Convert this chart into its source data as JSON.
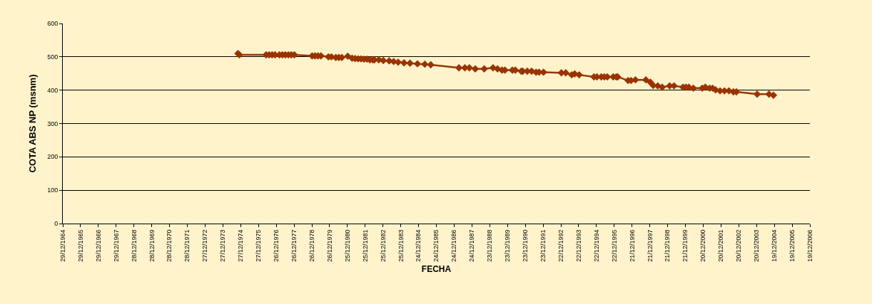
{
  "chart_data": {
    "type": "line",
    "xlabel": "FECHA",
    "ylabel": "COTA ABS NP (msnm)",
    "x": [
      "1974-11",
      "1974-12",
      "1976-06",
      "1976-08",
      "1976-10",
      "1976-12",
      "1977-03",
      "1977-05",
      "1977-07",
      "1977-09",
      "1977-11",
      "1978-01",
      "1979-01",
      "1979-03",
      "1979-05",
      "1979-07",
      "1979-12",
      "1980-02",
      "1980-05",
      "1980-07",
      "1980-09",
      "1981-01",
      "1981-04",
      "1981-06",
      "1981-08",
      "1981-10",
      "1981-12",
      "1982-02",
      "1982-04",
      "1982-06",
      "1982-07",
      "1982-10",
      "1983-01",
      "1983-05",
      "1983-08",
      "1983-11",
      "1984-03",
      "1984-07",
      "1984-12",
      "1985-05",
      "1985-09",
      "1987-04",
      "1987-08",
      "1987-11",
      "1988-03",
      "1988-09",
      "1989-03",
      "1989-06",
      "1989-09",
      "1989-11",
      "1990-04",
      "1990-06",
      "1990-10",
      "1990-11",
      "1991-02",
      "1991-05",
      "1991-08",
      "1991-10",
      "1992-01",
      "1993-01",
      "1993-04",
      "1993-08",
      "1993-10",
      "1994-01",
      "1994-11",
      "1995-01",
      "1995-04",
      "1995-06",
      "1995-08",
      "1995-12",
      "1996-02",
      "1996-03",
      "1996-10",
      "1996-12",
      "1997-03",
      "1997-10",
      "1998-01",
      "1998-03",
      "1998-06",
      "1998-09",
      "1999-02",
      "1999-05",
      "1999-11",
      "2000-01",
      "2000-03",
      "2000-06",
      "2000-12",
      "2001-02",
      "2001-05",
      "2001-07",
      "2001-09",
      "2001-12",
      "2002-03",
      "2002-06",
      "2002-09",
      "2002-11",
      "2004-01",
      "2004-09",
      "2004-12"
    ],
    "series": [
      {
        "color": "#993300",
        "values": [
          510,
          506,
          506,
          506,
          506,
          506,
          506,
          506,
          506,
          506,
          506,
          506,
          503,
          503,
          503,
          503,
          500,
          500,
          498,
          498,
          498,
          502,
          496,
          495,
          494,
          494,
          493,
          493,
          491,
          491,
          491,
          491,
          489,
          488,
          486,
          484,
          482,
          481,
          479,
          478,
          476,
          467,
          467,
          467,
          464,
          464,
          467,
          464,
          460,
          460,
          460,
          460,
          457,
          457,
          457,
          457,
          454,
          454,
          454,
          452,
          452,
          446,
          449,
          446,
          440,
          440,
          440,
          440,
          440,
          440,
          440,
          440,
          429,
          429,
          431,
          431,
          424,
          414,
          413,
          409,
          413,
          413,
          409,
          409,
          409,
          406,
          406,
          409,
          406,
          406,
          401,
          398,
          398,
          398,
          395,
          395,
          388,
          388,
          385
        ]
      }
    ],
    "xlim": [
      "1964-12-29",
      "2006-12-19"
    ],
    "xticks": [
      {
        "value": "1964-12-29",
        "label": "29/12/1964"
      },
      {
        "value": "1965-12-29",
        "label": "29/12/1965"
      },
      {
        "value": "1966-12-29",
        "label": "29/12/1966"
      },
      {
        "value": "1967-12-29",
        "label": "29/12/1967"
      },
      {
        "value": "1968-12-28",
        "label": "28/12/1968"
      },
      {
        "value": "1969-12-28",
        "label": "28/12/1969"
      },
      {
        "value": "1970-12-28",
        "label": "28/12/1970"
      },
      {
        "value": "1971-12-28",
        "label": "28/12/1971"
      },
      {
        "value": "1972-12-27",
        "label": "27/12/1972"
      },
      {
        "value": "1973-12-27",
        "label": "27/12/1973"
      },
      {
        "value": "1974-12-27",
        "label": "27/12/1974"
      },
      {
        "value": "1975-12-27",
        "label": "27/12/1975"
      },
      {
        "value": "1976-12-26",
        "label": "26/12/1976"
      },
      {
        "value": "1977-12-26",
        "label": "26/12/1977"
      },
      {
        "value": "1978-12-26",
        "label": "26/12/1978"
      },
      {
        "value": "1979-12-26",
        "label": "26/12/1979"
      },
      {
        "value": "1980-12-25",
        "label": "25/12/1980"
      },
      {
        "value": "1981-12-25",
        "label": "25/12/1981"
      },
      {
        "value": "1982-12-25",
        "label": "25/12/1982"
      },
      {
        "value": "1983-12-25",
        "label": "25/12/1983"
      },
      {
        "value": "1984-12-24",
        "label": "24/12/1984"
      },
      {
        "value": "1985-12-24",
        "label": "24/12/1985"
      },
      {
        "value": "1986-12-24",
        "label": "24/12/1986"
      },
      {
        "value": "1987-12-24",
        "label": "24/12/1987"
      },
      {
        "value": "1988-12-23",
        "label": "23/12/1988"
      },
      {
        "value": "1989-12-23",
        "label": "23/12/1989"
      },
      {
        "value": "1990-12-23",
        "label": "23/12/1990"
      },
      {
        "value": "1991-12-23",
        "label": "23/12/1991"
      },
      {
        "value": "1992-12-22",
        "label": "22/12/1992"
      },
      {
        "value": "1993-12-22",
        "label": "22/12/1993"
      },
      {
        "value": "1994-12-22",
        "label": "22/12/1994"
      },
      {
        "value": "1995-12-22",
        "label": "22/12/1995"
      },
      {
        "value": "1996-12-21",
        "label": "21/12/1996"
      },
      {
        "value": "1997-12-21",
        "label": "21/12/1997"
      },
      {
        "value": "1998-12-21",
        "label": "21/12/1998"
      },
      {
        "value": "1999-12-21",
        "label": "21/12/1999"
      },
      {
        "value": "2000-12-20",
        "label": "20/12/2000"
      },
      {
        "value": "2001-12-20",
        "label": "20/12/2001"
      },
      {
        "value": "2002-12-20",
        "label": "20/12/2002"
      },
      {
        "value": "2003-12-20",
        "label": "20/12/2003"
      },
      {
        "value": "2004-12-19",
        "label": "19/12/2004"
      },
      {
        "value": "2005-12-19",
        "label": "19/12/2005"
      },
      {
        "value": "2006-12-19",
        "label": "19/12/2006"
      }
    ],
    "ylim": [
      0,
      600
    ],
    "yticks": [
      0,
      100,
      200,
      300,
      400,
      500,
      600
    ],
    "grid": "y",
    "legend": false,
    "marker": "diamond",
    "line_style": "solid"
  }
}
